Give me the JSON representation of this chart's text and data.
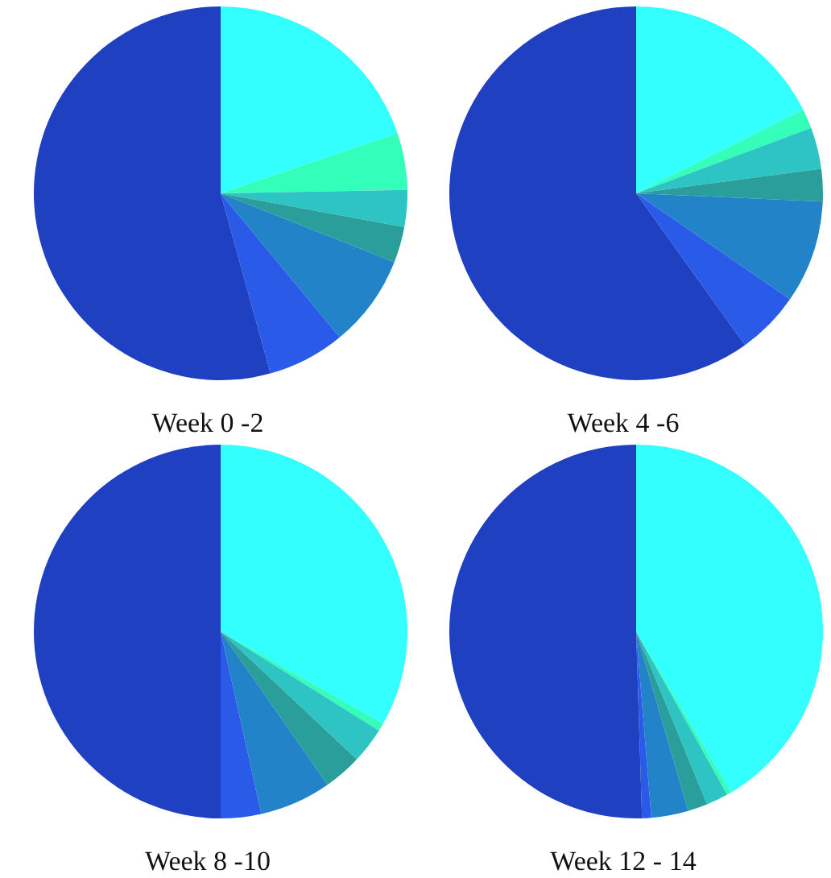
{
  "chart_data": [
    {
      "type": "pie",
      "title": "Week 0 -2",
      "categories": [
        null,
        null,
        null,
        null,
        null,
        null,
        null
      ],
      "values": [
        19.8,
        4.9,
        3.2,
        3.1,
        8.0,
        6.7,
        54.3
      ],
      "colors": [
        "#33ffff",
        "#33ffbb",
        "#2ec4c4",
        "#2a9e9a",
        "#2283c8",
        "#2a5be8",
        "#1f40c0"
      ]
    },
    {
      "type": "pie",
      "title": "Week 4 -6",
      "categories": [
        null,
        null,
        null,
        null,
        null,
        null,
        null
      ],
      "values": [
        17.6,
        1.7,
        3.6,
        2.8,
        8.9,
        5.5,
        59.9
      ],
      "colors": [
        "#33ffff",
        "#33ffbb",
        "#2ec4c4",
        "#2a9e9a",
        "#2283c8",
        "#2a5be8",
        "#1f40c0"
      ]
    },
    {
      "type": "pie",
      "title": "Week 8 -10",
      "categories": [
        null,
        null,
        null,
        null,
        null,
        null,
        null
      ],
      "values": [
        33.2,
        0.7,
        3.1,
        3.3,
        6.2,
        3.5,
        50.0
      ],
      "colors": [
        "#33ffff",
        "#33ffbb",
        "#2ec4c4",
        "#2a9e9a",
        "#2283c8",
        "#2a5be8",
        "#1f40c0"
      ]
    },
    {
      "type": "pie",
      "title": "Week 12 - 14",
      "categories": [
        null,
        null,
        null,
        null,
        null,
        null,
        null
      ],
      "values": [
        41.5,
        0.4,
        1.9,
        1.7,
        3.2,
        0.8,
        50.5
      ],
      "colors": [
        "#33ffff",
        "#33ffbb",
        "#2ec4c4",
        "#2a9e9a",
        "#2283c8",
        "#2a5be8",
        "#1f40c0"
      ]
    }
  ]
}
